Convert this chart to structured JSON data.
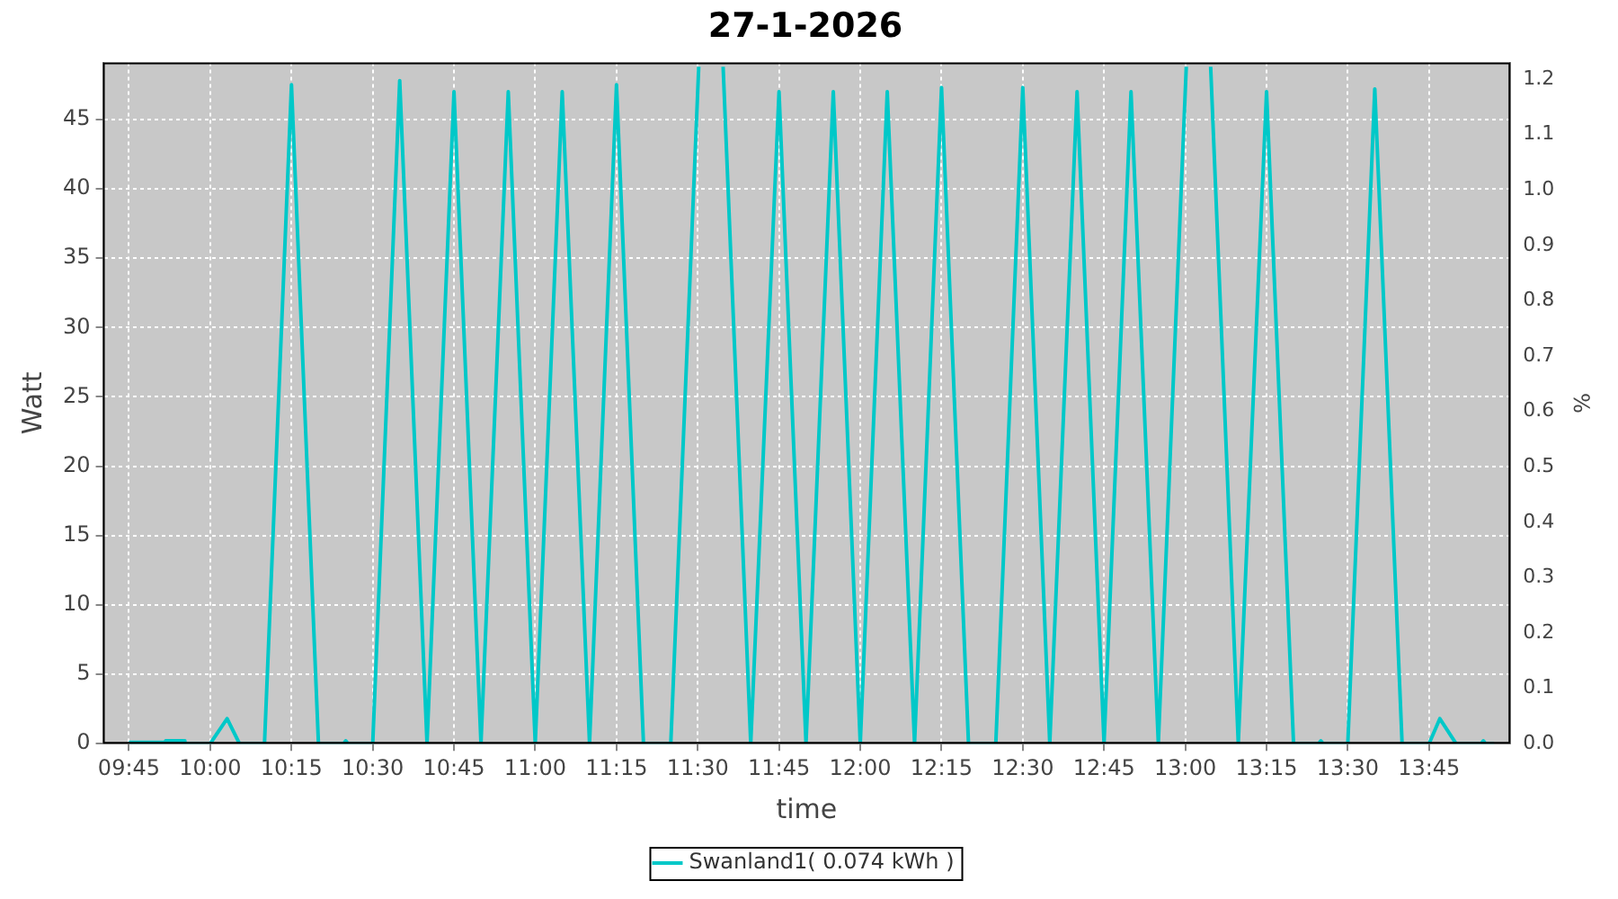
{
  "chart_data": {
    "type": "line",
    "title": "27-1-2026",
    "xlabel": "time",
    "ylabel": "Watt",
    "y2label": "%",
    "xlim": [
      9.67,
      14.0
    ],
    "xticks": [
      {
        "value": 9.75,
        "label": "09:45"
      },
      {
        "value": 10,
        "label": "10:00"
      },
      {
        "value": 10.25,
        "label": "10:15"
      },
      {
        "value": 10.5,
        "label": "10:30"
      },
      {
        "value": 10.75,
        "label": "10:45"
      },
      {
        "value": 11,
        "label": "11:00"
      },
      {
        "value": 11.25,
        "label": "11:15"
      },
      {
        "value": 11.5,
        "label": "11:30"
      },
      {
        "value": 11.75,
        "label": "11:45"
      },
      {
        "value": 12,
        "label": "12:00"
      },
      {
        "value": 12.25,
        "label": "12:15"
      },
      {
        "value": 12.5,
        "label": "12:30"
      },
      {
        "value": 12.75,
        "label": "12:45"
      },
      {
        "value": 13,
        "label": "13:00"
      },
      {
        "value": 13.25,
        "label": "13:15"
      },
      {
        "value": 13.5,
        "label": "13:30"
      },
      {
        "value": 13.75,
        "label": "13:45"
      }
    ],
    "ylim": [
      0,
      49.1
    ],
    "yticks": [
      0,
      5,
      10,
      15,
      20,
      25,
      30,
      35,
      40,
      45
    ],
    "y2lim": [
      0,
      1.23
    ],
    "y2ticks": [
      {
        "value": 0,
        "label": "0.0"
      },
      0.1,
      0.2,
      0.3,
      0.4,
      0.5,
      0.6,
      0.7,
      0.8,
      0.9,
      {
        "value": 1,
        "label": "1.0"
      },
      1.1,
      1.2
    ],
    "grid": true,
    "legend": "bottom",
    "marker": "none",
    "line_style": "solid",
    "series": [
      {
        "name": "Swanland1( 0.074 kWh )",
        "color": "#00c8c8",
        "x": [
          9.75,
          9.86,
          9.863,
          9.918,
          9.922,
          10.0,
          10.052,
          10.09,
          10.167,
          10.25,
          10.333,
          10.41,
          10.417,
          10.424,
          10.5,
          10.583,
          10.667,
          10.75,
          10.833,
          10.917,
          11.0,
          11.083,
          11.167,
          11.25,
          11.333,
          11.417,
          11.503,
          11.54,
          11.578,
          11.663,
          11.75,
          11.833,
          11.917,
          12.0,
          12.083,
          12.167,
          12.25,
          12.333,
          12.417,
          12.5,
          12.583,
          12.667,
          12.75,
          12.833,
          12.917,
          13.003,
          13.04,
          13.078,
          13.163,
          13.25,
          13.333,
          13.41,
          13.417,
          13.424,
          13.5,
          13.583,
          13.667,
          13.75,
          13.783,
          13.833,
          13.91,
          13.917,
          13.924,
          13.95
        ],
        "values": [
          0.1,
          0.1,
          0.2,
          0.2,
          0,
          0,
          1.8,
          0,
          0,
          47.5,
          0,
          0,
          0.2,
          0,
          0,
          47.8,
          0,
          47,
          0,
          47,
          0,
          47,
          0,
          47.5,
          0,
          0,
          48.8,
          null,
          48.8,
          0,
          47,
          0,
          47,
          0,
          47,
          0,
          47.3,
          0,
          0,
          47.3,
          0,
          47,
          0,
          47,
          0,
          48.8,
          null,
          48.8,
          0,
          47,
          0,
          0,
          0.2,
          0,
          0,
          47.2,
          0,
          0,
          1.8,
          0,
          0,
          0.2,
          0,
          0
        ]
      }
    ]
  }
}
